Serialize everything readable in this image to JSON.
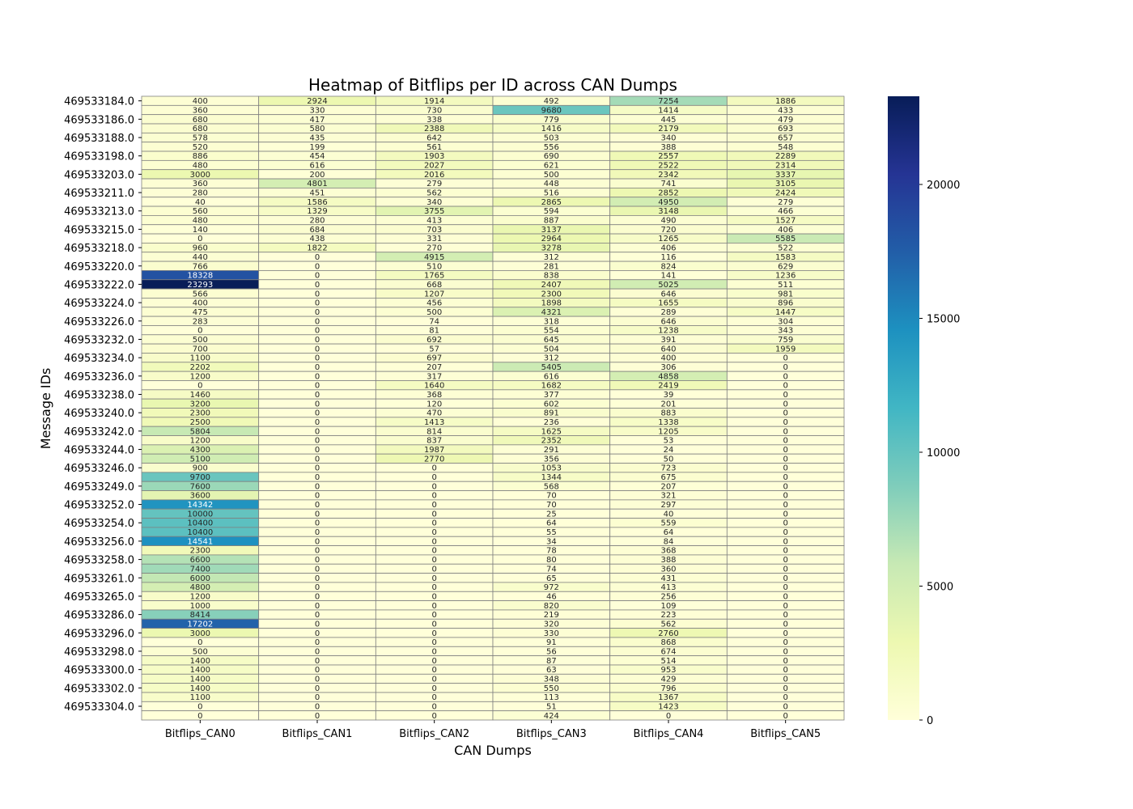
{
  "chart_data": {
    "type": "heatmap",
    "title": "Heatmap of Bitflips per ID across CAN Dumps",
    "xlabel": "CAN Dumps",
    "ylabel": "Message IDs",
    "columns": [
      "Bitflips_CAN0",
      "Bitflips_CAN1",
      "Bitflips_CAN2",
      "Bitflips_CAN3",
      "Bitflips_CAN4",
      "Bitflips_CAN5"
    ],
    "y_tick_labels": [
      "469533184.0",
      "469533186.0",
      "469533188.0",
      "469533198.0",
      "469533203.0",
      "469533211.0",
      "469533213.0",
      "469533215.0",
      "469533218.0",
      "469533220.0",
      "469533222.0",
      "469533224.0",
      "469533226.0",
      "469533232.0",
      "469533234.0",
      "469533236.0",
      "469533238.0",
      "469533240.0",
      "469533242.0",
      "469533244.0",
      "469533246.0",
      "469533249.0",
      "469533252.0",
      "469533254.0",
      "469533256.0",
      "469533258.0",
      "469533261.0",
      "469533265.0",
      "469533286.0",
      "469533296.0",
      "469533298.0",
      "469533300.0",
      "469533302.0",
      "469533304.0"
    ],
    "y_tick_every": 2,
    "colormap": "YlGnBu",
    "colorbar": {
      "min": 0,
      "max": 23293,
      "ticks": [
        0,
        5000,
        10000,
        15000,
        20000
      ]
    },
    "values": [
      [
        400,
        2924,
        1914,
        492,
        7254,
        1886
      ],
      [
        360,
        330,
        730,
        9680,
        1414,
        433
      ],
      [
        680,
        417,
        338,
        779,
        445,
        479
      ],
      [
        680,
        580,
        2388,
        1416,
        2179,
        693
      ],
      [
        578,
        435,
        642,
        503,
        340,
        657
      ],
      [
        520,
        199,
        561,
        556,
        388,
        548
      ],
      [
        886,
        454,
        1903,
        690,
        2557,
        2289
      ],
      [
        480,
        616,
        2027,
        621,
        2522,
        2314
      ],
      [
        3000,
        200,
        2016,
        500,
        2342,
        3337
      ],
      [
        360,
        4801,
        279,
        448,
        741,
        3105
      ],
      [
        280,
        451,
        562,
        516,
        2852,
        2424
      ],
      [
        40,
        1586,
        340,
        2865,
        4950,
        279
      ],
      [
        560,
        1329,
        3755,
        594,
        3148,
        466
      ],
      [
        480,
        280,
        413,
        887,
        490,
        1527
      ],
      [
        140,
        684,
        703,
        3137,
        720,
        406
      ],
      [
        0,
        438,
        331,
        2964,
        1265,
        5585
      ],
      [
        960,
        1822,
        270,
        3278,
        406,
        522
      ],
      [
        440,
        0,
        4915,
        312,
        116,
        1583
      ],
      [
        766,
        0,
        510,
        281,
        824,
        629
      ],
      [
        18328,
        0,
        1765,
        838,
        141,
        1236
      ],
      [
        23293,
        0,
        668,
        2407,
        5025,
        511
      ],
      [
        566,
        0,
        1207,
        2300,
        646,
        981
      ],
      [
        400,
        0,
        456,
        1898,
        1655,
        896
      ],
      [
        475,
        0,
        500,
        4321,
        289,
        1447
      ],
      [
        283,
        0,
        74,
        318,
        646,
        304
      ],
      [
        0,
        0,
        81,
        554,
        1238,
        343
      ],
      [
        500,
        0,
        692,
        645,
        391,
        759
      ],
      [
        700,
        0,
        57,
        504,
        640,
        1959
      ],
      [
        1100,
        0,
        697,
        312,
        400,
        0
      ],
      [
        2202,
        0,
        207,
        5405,
        306,
        0
      ],
      [
        1200,
        0,
        317,
        616,
        4858,
        0
      ],
      [
        0,
        0,
        1640,
        1682,
        2419,
        0
      ],
      [
        1460,
        0,
        368,
        377,
        39,
        0
      ],
      [
        3200,
        0,
        120,
        602,
        201,
        0
      ],
      [
        2300,
        0,
        470,
        891,
        883,
        0
      ],
      [
        2500,
        0,
        1413,
        236,
        1338,
        0
      ],
      [
        5804,
        0,
        814,
        1625,
        1205,
        0
      ],
      [
        1200,
        0,
        837,
        2352,
        53,
        0
      ],
      [
        4300,
        0,
        1987,
        291,
        24,
        0
      ],
      [
        5100,
        0,
        2770,
        356,
        50,
        0
      ],
      [
        900,
        0,
        0,
        1053,
        723,
        0
      ],
      [
        9700,
        0,
        0,
        1344,
        675,
        0
      ],
      [
        7600,
        0,
        0,
        568,
        207,
        0
      ],
      [
        3600,
        0,
        0,
        70,
        321,
        0
      ],
      [
        14342,
        0,
        0,
        70,
        297,
        0
      ],
      [
        10000,
        0,
        0,
        25,
        40,
        0
      ],
      [
        10400,
        0,
        0,
        64,
        559,
        0
      ],
      [
        10400,
        0,
        0,
        55,
        64,
        0
      ],
      [
        14541,
        0,
        0,
        34,
        84,
        0
      ],
      [
        2300,
        0,
        0,
        78,
        368,
        0
      ],
      [
        6600,
        0,
        0,
        80,
        388,
        0
      ],
      [
        7400,
        0,
        0,
        74,
        360,
        0
      ],
      [
        6000,
        0,
        0,
        65,
        431,
        0
      ],
      [
        4800,
        0,
        0,
        972,
        413,
        0
      ],
      [
        1200,
        0,
        0,
        46,
        256,
        0
      ],
      [
        1000,
        0,
        0,
        820,
        109,
        0
      ],
      [
        8414,
        0,
        0,
        219,
        223,
        0
      ],
      [
        17202,
        0,
        0,
        320,
        562,
        0
      ],
      [
        3000,
        0,
        0,
        330,
        2760,
        0
      ],
      [
        0,
        0,
        0,
        91,
        868,
        0
      ],
      [
        500,
        0,
        0,
        56,
        674,
        0
      ],
      [
        1400,
        0,
        0,
        87,
        514,
        0
      ],
      [
        1400,
        0,
        0,
        63,
        953,
        0
      ],
      [
        1400,
        0,
        0,
        348,
        429,
        0
      ],
      [
        1400,
        0,
        0,
        550,
        796,
        0
      ],
      [
        1100,
        0,
        0,
        113,
        1367,
        0
      ],
      [
        0,
        0,
        0,
        51,
        1423,
        0
      ],
      [
        0,
        0,
        0,
        424,
        0,
        0
      ]
    ]
  }
}
